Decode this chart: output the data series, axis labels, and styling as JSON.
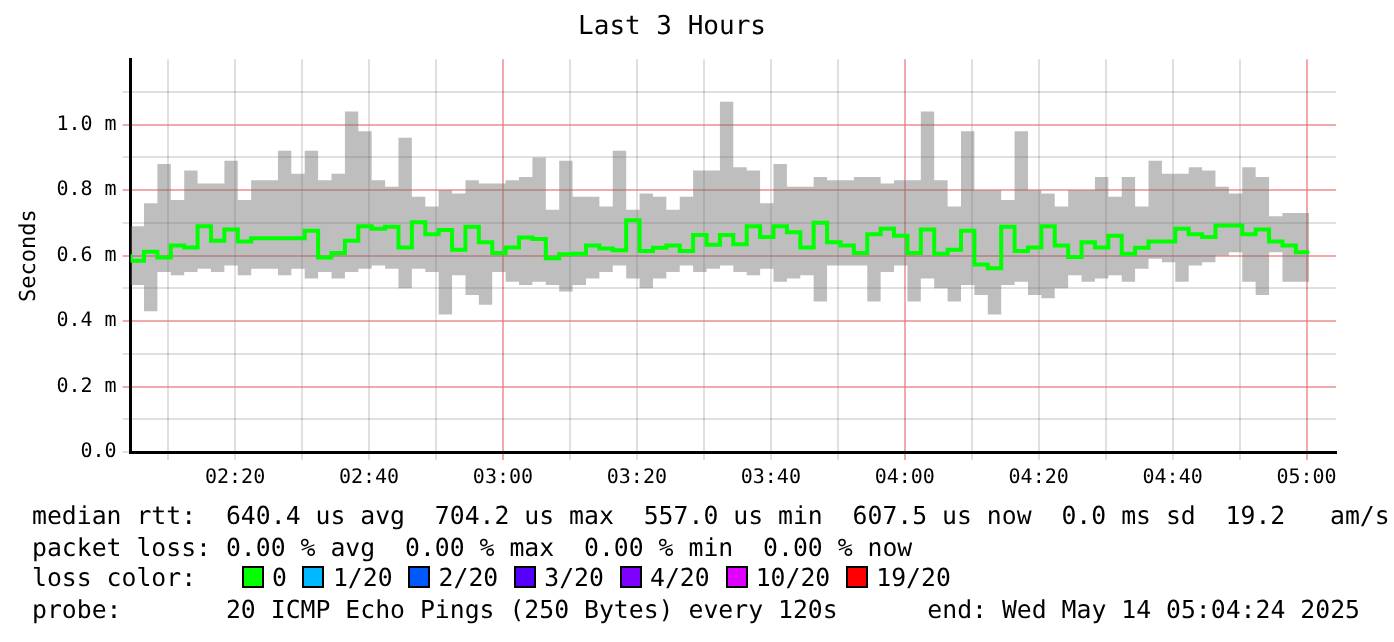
{
  "chart_data": {
    "type": "step",
    "title": "Last 3 Hours",
    "ylabel": "Seconds",
    "x": [
      2.0733,
      2.1067,
      2.14,
      2.1733,
      2.2067,
      2.24,
      2.2733,
      2.3067,
      2.34,
      2.3733,
      2.4067,
      2.44,
      2.4733,
      2.5067,
      2.54,
      2.5733,
      2.6067,
      2.64,
      2.6733,
      2.7067,
      2.74,
      2.7733,
      2.8067,
      2.84,
      2.8733,
      2.9067,
      2.94,
      2.9733,
      3.0067,
      3.04,
      3.0733,
      3.1067,
      3.14,
      3.1733,
      3.2067,
      3.24,
      3.2733,
      3.3067,
      3.34,
      3.3733,
      3.4067,
      3.44,
      3.4733,
      3.5067,
      3.54,
      3.5733,
      3.6067,
      3.64,
      3.6733,
      3.7067,
      3.74,
      3.7733,
      3.8067,
      3.84,
      3.8733,
      3.9067,
      3.94,
      3.9733,
      4.0067,
      4.04,
      4.0733,
      4.1067,
      4.14,
      4.1733,
      4.2067,
      4.24,
      4.2733,
      4.3067,
      4.34,
      4.3733,
      4.4067,
      4.44,
      4.4733,
      4.5067,
      4.54,
      4.5733,
      4.6067,
      4.64,
      4.6733,
      4.7067,
      4.74,
      4.7733,
      4.8067,
      4.84,
      4.8733,
      4.9067,
      4.94,
      4.9733,
      5.0067
    ],
    "series": [
      {
        "color": "#00ff00",
        "values": [
          0.604,
          0.584,
          0.612,
          0.594,
          0.631,
          0.625,
          0.69,
          0.645,
          0.68,
          0.643,
          0.653,
          0.653,
          0.653,
          0.653,
          0.676,
          0.594,
          0.608,
          0.645,
          0.69,
          0.682,
          0.688,
          0.625,
          0.702,
          0.665,
          0.678,
          0.618,
          0.688,
          0.641,
          0.608,
          0.625,
          0.655,
          0.651,
          0.592,
          0.604,
          0.606,
          0.631,
          0.622,
          0.616,
          0.708,
          0.614,
          0.624,
          0.631,
          0.614,
          0.663,
          0.633,
          0.663,
          0.635,
          0.69,
          0.657,
          0.69,
          0.671,
          0.625,
          0.7,
          0.641,
          0.631,
          0.608,
          0.665,
          0.682,
          0.661,
          0.608,
          0.68,
          0.606,
          0.618,
          0.676,
          0.573,
          0.561,
          0.688,
          0.614,
          0.625,
          0.69,
          0.631,
          0.596,
          0.641,
          0.625,
          0.661,
          0.606,
          0.624,
          0.643,
          0.643,
          0.682,
          0.665,
          0.657,
          0.692,
          0.692,
          0.665,
          0.68,
          0.643,
          0.631,
          0.61
        ],
        "lower": [
          0.51,
          0.51,
          0.43,
          0.55,
          0.54,
          0.55,
          0.56,
          0.55,
          0.57,
          0.54,
          0.56,
          0.56,
          0.54,
          0.56,
          0.53,
          0.55,
          0.53,
          0.55,
          0.56,
          0.57,
          0.56,
          0.5,
          0.56,
          0.55,
          0.42,
          0.54,
          0.48,
          0.45,
          0.55,
          0.52,
          0.51,
          0.52,
          0.51,
          0.49,
          0.51,
          0.53,
          0.55,
          0.57,
          0.53,
          0.5,
          0.53,
          0.55,
          0.57,
          0.55,
          0.56,
          0.57,
          0.55,
          0.54,
          0.56,
          0.52,
          0.53,
          0.54,
          0.46,
          0.57,
          0.57,
          0.57,
          0.46,
          0.55,
          0.57,
          0.46,
          0.53,
          0.5,
          0.46,
          0.51,
          0.48,
          0.42,
          0.51,
          0.52,
          0.48,
          0.47,
          0.5,
          0.54,
          0.52,
          0.53,
          0.54,
          0.52,
          0.56,
          0.59,
          0.58,
          0.52,
          0.57,
          0.58,
          0.6,
          0.61,
          0.52,
          0.48,
          0.61,
          0.52,
          0.52
        ],
        "upper": [
          0.86,
          0.69,
          0.76,
          0.88,
          0.77,
          0.86,
          0.82,
          0.82,
          0.89,
          0.77,
          0.83,
          0.83,
          0.92,
          0.85,
          0.92,
          0.83,
          0.85,
          1.04,
          0.98,
          0.83,
          0.81,
          0.96,
          0.78,
          0.75,
          0.8,
          0.79,
          0.83,
          0.82,
          0.82,
          0.83,
          0.84,
          0.9,
          0.74,
          0.89,
          0.78,
          0.78,
          0.75,
          0.92,
          0.74,
          0.79,
          0.78,
          0.74,
          0.78,
          0.86,
          0.86,
          1.07,
          0.87,
          0.86,
          0.76,
          0.88,
          0.81,
          0.81,
          0.84,
          0.83,
          0.83,
          0.84,
          0.84,
          0.82,
          0.83,
          0.83,
          1.04,
          0.83,
          0.75,
          0.98,
          0.8,
          0.8,
          0.77,
          0.98,
          0.8,
          0.79,
          0.75,
          0.8,
          0.8,
          0.84,
          0.78,
          0.84,
          0.75,
          0.89,
          0.85,
          0.85,
          0.87,
          0.86,
          0.81,
          0.79,
          0.87,
          0.84,
          0.72,
          0.73,
          0.73
        ]
      }
    ],
    "xlim": [
      2.0733,
      5.0733
    ],
    "xticks": [
      {
        "value": 2.1667,
        "label": null
      },
      {
        "value": 2.3333,
        "label": "02:20"
      },
      {
        "value": 2.5,
        "label": null
      },
      {
        "value": 2.6667,
        "label": "02:40"
      },
      {
        "value": 2.8333,
        "label": null
      },
      {
        "value": 3,
        "label": "03:00"
      },
      {
        "value": 3.1667,
        "label": null
      },
      {
        "value": 3.3333,
        "label": "03:20"
      },
      {
        "value": 3.5,
        "label": null
      },
      {
        "value": 3.6667,
        "label": "03:40"
      },
      {
        "value": 3.8333,
        "label": null
      },
      {
        "value": 4,
        "label": "04:00"
      },
      {
        "value": 4.1667,
        "label": null
      },
      {
        "value": 4.3333,
        "label": "04:20"
      },
      {
        "value": 4.5,
        "label": null
      },
      {
        "value": 4.6667,
        "label": "04:40"
      },
      {
        "value": 4.8333,
        "label": null
      },
      {
        "value": 5,
        "label": "05:00"
      }
    ],
    "ylim": [
      0,
      1.2
    ],
    "yticks": [
      {
        "value": 0,
        "label": "0.0"
      },
      {
        "value": 0.1,
        "label": null
      },
      {
        "value": 0.2,
        "label": "0.2 m"
      },
      {
        "value": 0.3,
        "label": null
      },
      {
        "value": 0.4,
        "label": "0.4 m"
      },
      {
        "value": 0.5,
        "label": null
      },
      {
        "value": 0.6,
        "label": "0.6 m"
      },
      {
        "value": 0.7,
        "label": null
      },
      {
        "value": 0.8,
        "label": "0.8 m"
      },
      {
        "value": 0.9,
        "label": null
      },
      {
        "value": 1.0,
        "label": "1.0 m"
      },
      {
        "value": 1.1,
        "label": null
      }
    ],
    "grid": true,
    "legend": false,
    "annotations": [
      "median rtt:  640.4 us avg  704.2 us max  557.0 us min  607.5 us now  0.0 ms sd  19.2   am/s",
      "packet loss: 0.00 % avg  0.00 % max  0.00 % min  0.00 % now",
      "loss color:",
      "0",
      "1/20",
      "2/20",
      "3/20",
      "4/20",
      "10/20",
      "19/20",
      "probe:       20 ICMP Echo Pings (250 Bytes) every 120s",
      "end: Wed May 14 05:04:24 2025"
    ]
  }
}
